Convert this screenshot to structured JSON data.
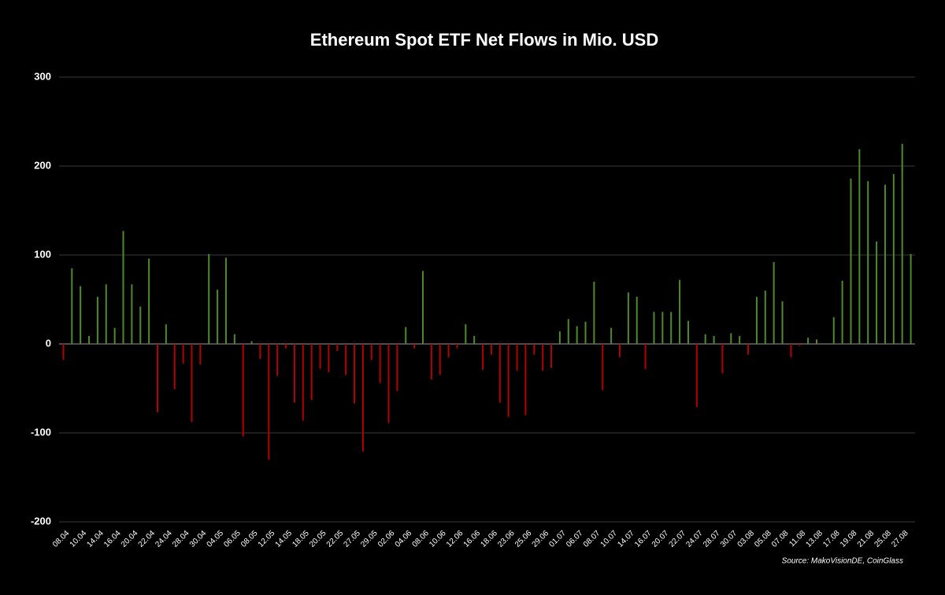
{
  "chart_data": {
    "type": "bar",
    "title": "Ethereum Spot ETF Net Flows in Mio. USD",
    "source": "Source: MakoVisionDE, CoinGlass",
    "categories": [
      "08.04",
      null,
      "10.04",
      null,
      "14.04",
      null,
      "16.04",
      null,
      "20.04",
      null,
      "22.04",
      null,
      "24.04",
      null,
      "28.04",
      null,
      "30.04",
      null,
      "04.05",
      null,
      "06.05",
      null,
      "08.05",
      null,
      "12.05",
      null,
      "14.05",
      null,
      "18.05",
      null,
      "20.05",
      null,
      "22.05",
      null,
      "27.05",
      null,
      "29.05",
      null,
      "02.06",
      null,
      "04.06",
      null,
      "08.06",
      null,
      "10.06",
      null,
      "12.06",
      null,
      "16.06",
      null,
      "18.06",
      null,
      "23.06",
      null,
      "25.06",
      null,
      "29.06",
      null,
      "01.07",
      null,
      "06.07",
      null,
      "08.07",
      null,
      "10.07",
      null,
      "14.07",
      null,
      "16.07",
      null,
      "20.07",
      null,
      "22.07",
      null,
      "24.07",
      null,
      "28.07",
      null,
      "30.07",
      null,
      "03.08",
      null,
      "05.08",
      null,
      "07.08",
      null,
      "11.08",
      null,
      "13.08",
      null,
      "17.08",
      null,
      "19.08",
      null,
      "21.08",
      null,
      "25.08",
      null,
      "27.08",
      null
    ],
    "values": [
      -18,
      85,
      65,
      9,
      53,
      67,
      18,
      127,
      67,
      42,
      96,
      -77,
      22,
      -51,
      -22,
      -88,
      -23,
      101,
      61,
      97,
      11,
      -104,
      3,
      -17,
      -130,
      -36,
      -5,
      -66,
      -86,
      -63,
      -28,
      -32,
      -8,
      -35,
      -67,
      -121,
      -18,
      -44,
      -89,
      -53,
      19,
      -5,
      82,
      -40,
      -35,
      -15,
      -5,
      22,
      9,
      -29,
      -12,
      -66,
      -82,
      -30,
      -80,
      -12,
      -30,
      -27,
      14,
      28,
      20,
      25,
      70,
      -52,
      18,
      -15,
      58,
      53,
      -28,
      36,
      36,
      36,
      72,
      26,
      -71,
      11,
      9,
      -33,
      12,
      9,
      -12,
      53,
      60,
      92,
      48,
      -15,
      -2,
      7,
      5,
      0,
      30,
      71,
      186,
      219,
      183,
      115,
      179,
      191,
      225,
      101
    ],
    "positive_color": "#4f8a2b",
    "negative_color": "#b30000",
    "ylim": [
      -200,
      300
    ],
    "yticks": [
      -200,
      -100,
      0,
      100,
      200,
      300
    ],
    "grid": true
  }
}
